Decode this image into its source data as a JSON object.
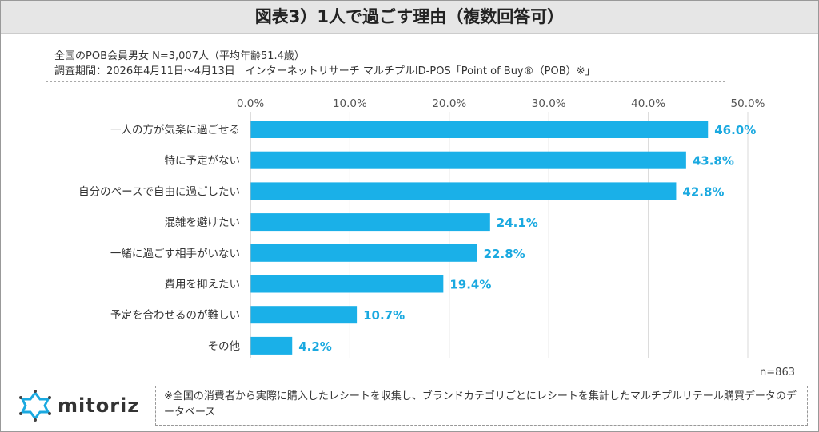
{
  "title": "図表3）1人で過ごす理由（複数回答可）",
  "info": {
    "line1": "全国のPOB会員男女 N=3,007人（平均年齢51.4歳）",
    "line2": "調査期間：2026年4月11日～4月13日　インターネットリサーチ マルチプルID-POS「Point of Buy®（POB）※」"
  },
  "chart_data": {
    "type": "bar",
    "orientation": "horizontal",
    "categories": [
      "一人の方が気楽に過ごせる",
      "特に予定がない",
      "自分のペースで自由に過ごしたい",
      "混雑を避けたい",
      "一緒に過ごす相手がいない",
      "費用を抑えたい",
      "予定を合わせるのが難しい",
      "その他"
    ],
    "values": [
      46.0,
      43.8,
      42.8,
      24.1,
      22.8,
      19.4,
      10.7,
      4.2
    ],
    "data_labels": [
      "46.0%",
      "43.8%",
      "42.8%",
      "24.1%",
      "22.8%",
      "19.4%",
      "10.7%",
      "4.2%"
    ],
    "xlim": [
      0,
      50
    ],
    "ticks": [
      "0.0%",
      "10.0%",
      "20.0%",
      "30.0%",
      "40.0%",
      "50.0%"
    ],
    "tick_position": "top",
    "grid": true,
    "color": "#1ab0e8"
  },
  "sample": "n=863",
  "note": "※全国の消費者から実際に購入したレシートを収集し、ブランドカテゴリごとにレシートを集計したマルチプルリテール購買データのデータベース",
  "logo": {
    "text": "mitoriz",
    "color": "#1aa9e0"
  }
}
